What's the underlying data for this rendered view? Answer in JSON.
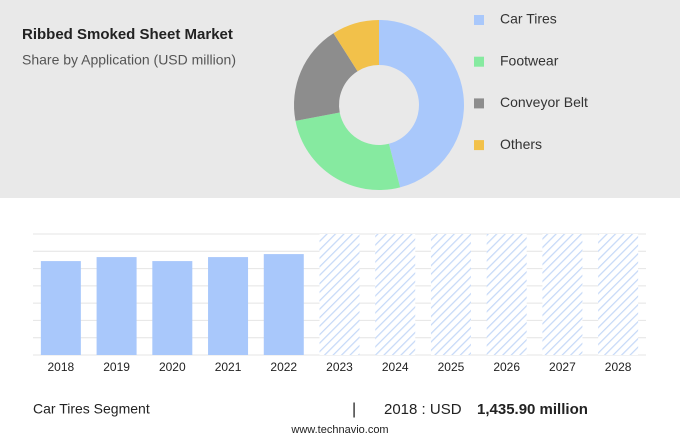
{
  "chart_data": [
    {
      "type": "donut",
      "title": "Ribbed Smoked Sheet Market",
      "subtitle": "Share by Application (USD million)",
      "categories": [
        "Car Tires",
        "Footwear",
        "Conveyor Belt",
        "Others"
      ],
      "values": [
        46,
        26,
        19,
        9
      ],
      "colors": [
        "#a9c8fb",
        "#86eaa0",
        "#8d8d8d",
        "#f2c14a"
      ]
    },
    {
      "type": "bar",
      "categories": [
        "2018",
        "2019",
        "2020",
        "2021",
        "2022",
        "2023",
        "2024",
        "2025",
        "2026",
        "2027",
        "2028"
      ],
      "values": [
        1435.9,
        1497,
        1436,
        1497,
        1543,
        null,
        null,
        null,
        null,
        null,
        null
      ],
      "color": "#a9c8fb",
      "ylim": [
        0,
        1850
      ]
    }
  ],
  "footer": {
    "segment": "Car Tires Segment",
    "separator": "|",
    "year_label": "2018 : USD",
    "value_label": "1,435.90 million",
    "website": "www.technavio.com"
  }
}
